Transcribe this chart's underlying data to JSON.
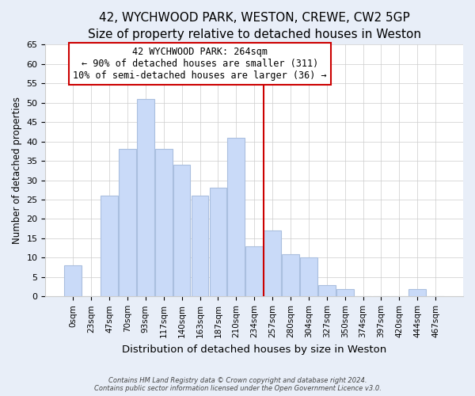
{
  "title": "42, WYCHWOOD PARK, WESTON, CREWE, CW2 5GP",
  "subtitle": "Size of property relative to detached houses in Weston",
  "xlabel": "Distribution of detached houses by size in Weston",
  "ylabel": "Number of detached properties",
  "bar_labels": [
    "0sqm",
    "23sqm",
    "47sqm",
    "70sqm",
    "93sqm",
    "117sqm",
    "140sqm",
    "163sqm",
    "187sqm",
    "210sqm",
    "234sqm",
    "257sqm",
    "280sqm",
    "304sqm",
    "327sqm",
    "350sqm",
    "374sqm",
    "397sqm",
    "420sqm",
    "444sqm",
    "467sqm"
  ],
  "bar_heights": [
    8,
    0,
    26,
    38,
    51,
    38,
    34,
    26,
    28,
    41,
    13,
    17,
    11,
    10,
    3,
    2,
    0,
    0,
    0,
    2,
    0
  ],
  "bar_color": "#c9daf8",
  "bar_edge_color": "#aabfdf",
  "marker_bar_index": 11,
  "marker_color": "#cc0000",
  "ylim": [
    0,
    65
  ],
  "yticks": [
    0,
    5,
    10,
    15,
    20,
    25,
    30,
    35,
    40,
    45,
    50,
    55,
    60,
    65
  ],
  "annotation_title": "42 WYCHWOOD PARK: 264sqm",
  "annotation_line1": "← 90% of detached houses are smaller (311)",
  "annotation_line2": "10% of semi-detached houses are larger (36) →",
  "footnote1": "Contains HM Land Registry data © Crown copyright and database right 2024.",
  "footnote2": "Contains public sector information licensed under the Open Government Licence v3.0.",
  "background_color": "#e8eef8",
  "plot_background": "#ffffff",
  "grid_color": "#cccccc",
  "title_fontsize": 11,
  "subtitle_fontsize": 9
}
